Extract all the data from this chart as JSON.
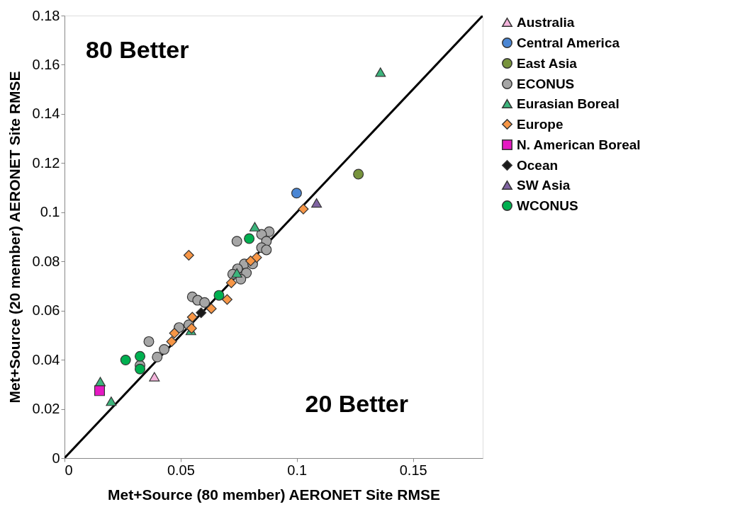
{
  "chart_data": {
    "type": "scatter",
    "xlabel": "Met+Source (80 member) AERONET Site RMSE",
    "ylabel": "Met+Source (20 member) AERONET Site RMSE",
    "xlim": [
      0,
      0.18
    ],
    "ylim": [
      0,
      0.18
    ],
    "xticks": [
      0,
      0.05,
      0.1,
      0.15
    ],
    "yticks": [
      0,
      0.02,
      0.04,
      0.06,
      0.08,
      0.1,
      0.12,
      0.14,
      0.16,
      0.18
    ],
    "grid": false,
    "legend": "right",
    "annotations": [
      "80 Better",
      "20 Better"
    ],
    "series": [
      {
        "type": "line",
        "color": "#000000",
        "marker": "none",
        "x": [
          0,
          0.18
        ],
        "values": [
          0,
          0.18
        ]
      },
      {
        "name": "Australia",
        "color": "#f4b4dc",
        "marker": "triangle",
        "x": [
          0.0387
        ],
        "values": [
          0.0331
        ]
      },
      {
        "name": "Central America",
        "color": "#4a86d4",
        "marker": "circle",
        "x": [
          0.0999
        ],
        "values": [
          0.1078
        ]
      },
      {
        "name": "East Asia",
        "color": "#77933c",
        "marker": "circle",
        "x": [
          0.1265
        ],
        "values": [
          0.1155
        ]
      },
      {
        "name": "ECONUS",
        "color": "#a6a6a6",
        "marker": "circle",
        "x": [
          0.0742,
          0.0881,
          0.0848,
          0.0869,
          0.0848,
          0.0869,
          0.0774,
          0.081,
          0.0745,
          0.0783,
          0.0759,
          0.0724,
          0.0363,
          0.0399,
          0.0429,
          0.0493,
          0.055,
          0.0573,
          0.0603,
          0.0535,
          0.0325
        ],
        "values": [
          0.0882,
          0.0921,
          0.091,
          0.0882,
          0.0856,
          0.0847,
          0.079,
          0.079,
          0.077,
          0.0753,
          0.0728,
          0.0748,
          0.0474,
          0.0411,
          0.0442,
          0.0531,
          0.0656,
          0.0642,
          0.0633,
          0.0542,
          0.0377
        ]
      },
      {
        "name": "Eurasian Boreal",
        "color": "#3cb47c",
        "marker": "triangle",
        "x": [
          0.136,
          0.0819,
          0.0742,
          0.0544,
          0.0154,
          0.0201
        ],
        "values": [
          0.157,
          0.0941,
          0.0753,
          0.0519,
          0.0311,
          0.0231
        ]
      },
      {
        "name": "Europe",
        "color": "#f79646",
        "marker": "diamond",
        "x": [
          0.1028,
          0.0827,
          0.0801,
          0.0718,
          0.0535,
          0.07,
          0.0632,
          0.055,
          0.0547,
          0.0473,
          0.0461
        ],
        "values": [
          0.1013,
          0.0816,
          0.0802,
          0.0713,
          0.0825,
          0.0645,
          0.0608,
          0.0573,
          0.0528,
          0.0508,
          0.0474
        ]
      },
      {
        "name": "N. American Boreal",
        "color": "#e619c3",
        "marker": "square",
        "x": [
          0.0151
        ],
        "values": [
          0.0274
        ]
      },
      {
        "name": "Ocean",
        "color": "#1a1a1a",
        "marker": "diamond",
        "x": [
          0.0588
        ],
        "values": [
          0.0591
        ]
      },
      {
        "name": "SW Asia",
        "color": "#8064a2",
        "marker": "triangle",
        "x": [
          0.1085
        ],
        "values": [
          0.1038
        ]
      },
      {
        "name": "WCONUS",
        "color": "#00b050",
        "marker": "circle",
        "x": [
          0.0795,
          0.0665,
          0.0263,
          0.0325,
          0.0325
        ],
        "values": [
          0.0893,
          0.0662,
          0.0399,
          0.0414,
          0.0362
        ]
      }
    ]
  }
}
